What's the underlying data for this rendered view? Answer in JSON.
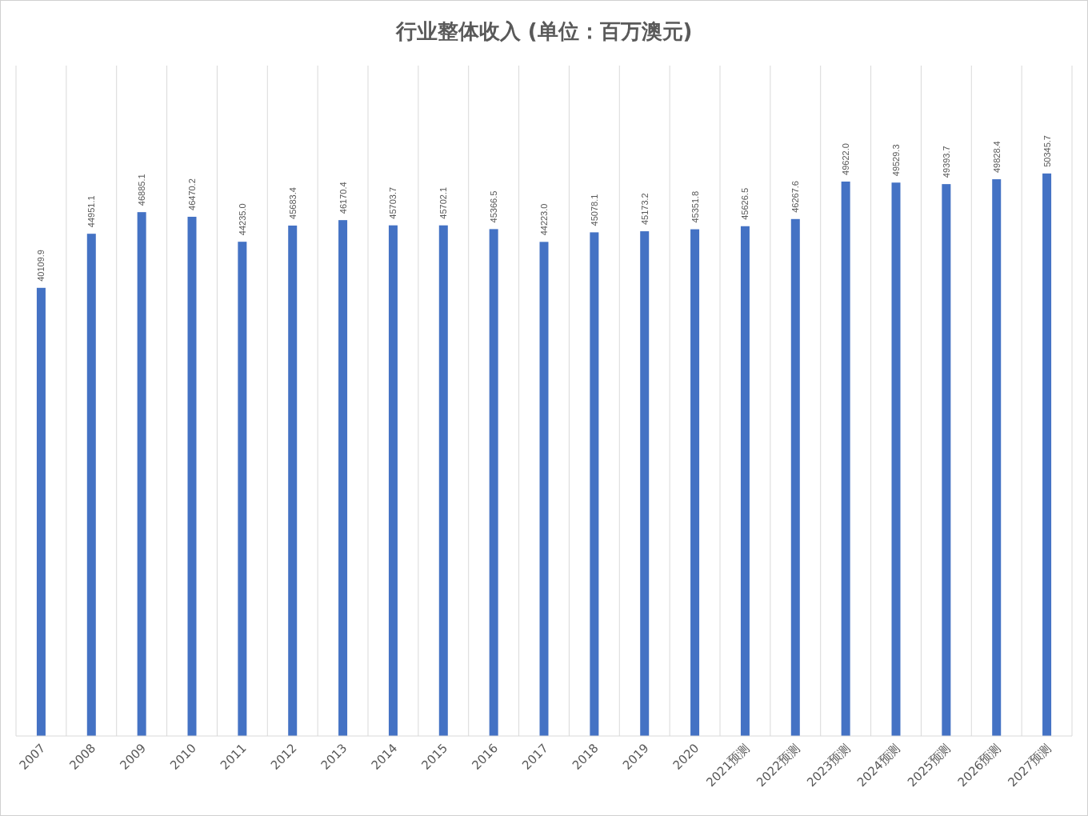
{
  "chart_data": {
    "type": "bar",
    "title": "行业整体收入 (单位：百万澳元)",
    "categories": [
      "2007",
      "2008",
      "2009",
      "2010",
      "2011",
      "2012",
      "2013",
      "2014",
      "2015",
      "2016",
      "2017",
      "2018",
      "2019",
      "2020",
      "2021预测",
      "2022预测",
      "2023预测",
      "2024预测",
      "2025预测",
      "2026预测",
      "2027预测"
    ],
    "values": [
      40109.9,
      44951.1,
      46885.1,
      46470.2,
      44235.0,
      45683.4,
      46170.4,
      45703.7,
      45702.1,
      45366.5,
      44223.0,
      45078.1,
      45173.2,
      45351.8,
      45626.5,
      46267.6,
      49622.0,
      49529.3,
      49393.7,
      49828.4,
      50345.7
    ],
    "value_labels": [
      "40109.9",
      "44951.1",
      "46885.1",
      "46470.2",
      "44235.0",
      "45683.4",
      "46170.4",
      "45703.7",
      "45702.1",
      "45366.5",
      "44223.0",
      "45078.1",
      "45173.2",
      "45351.8",
      "45626.5",
      "46267.6",
      "49622.0",
      "49529.3",
      "49393.7",
      "49828.4",
      "50345.7"
    ],
    "color": "#4472c4",
    "ylim": [
      0,
      60000
    ],
    "grid": "x",
    "tick_labels": "x"
  }
}
